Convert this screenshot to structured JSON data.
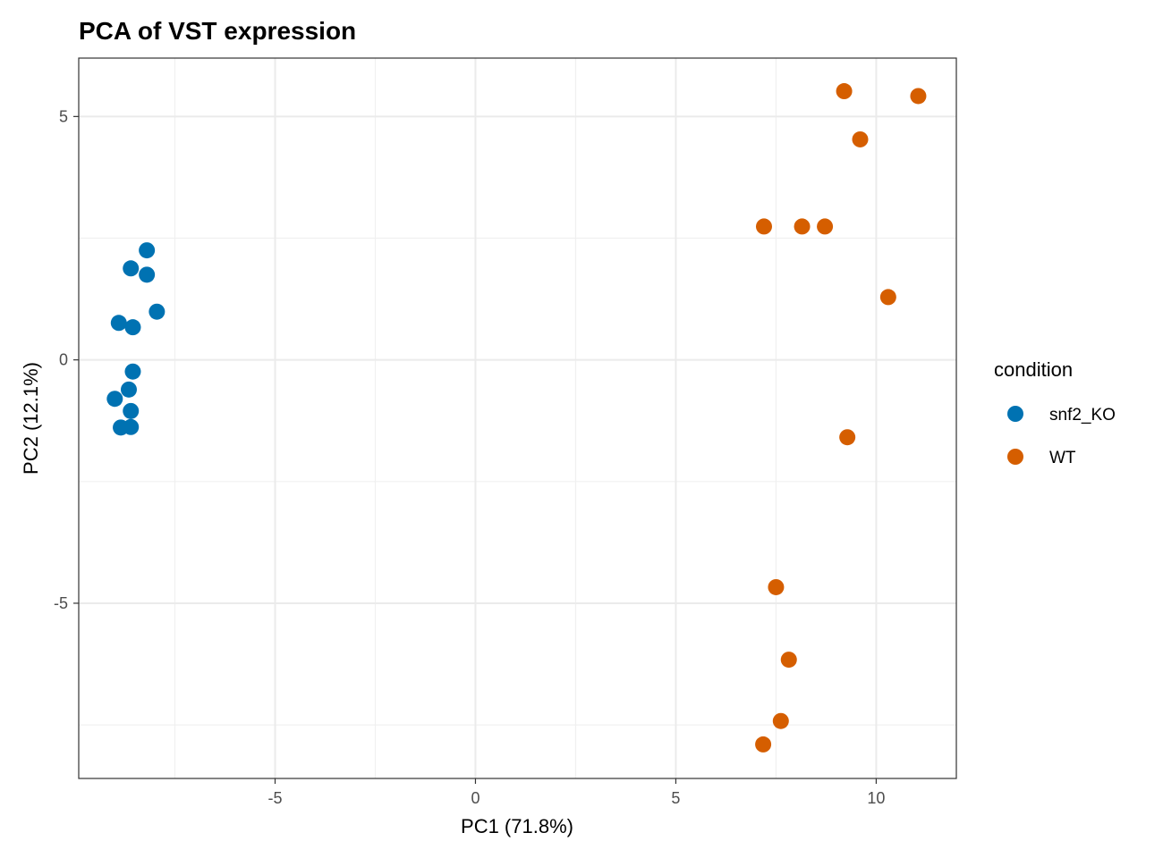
{
  "chart_data": {
    "type": "scatter",
    "title": "PCA of VST expression",
    "xlabel": "PC1 (71.8%)",
    "ylabel": "PC2 (12.1%)",
    "xlim": [
      -9.9,
      12.0
    ],
    "ylim": [
      -8.6,
      6.2
    ],
    "xticks": [
      -5,
      0,
      5,
      10
    ],
    "yticks": [
      -5,
      0,
      5
    ],
    "xtick_labels": [
      "-5",
      "0",
      "5",
      "10"
    ],
    "ytick_labels": [
      "-5",
      "0",
      "5"
    ],
    "grid": true,
    "legend": {
      "title": "condition",
      "placement": "right"
    },
    "series": [
      {
        "name": "snf2_KO",
        "color": "#0072B2",
        "points": [
          {
            "x": -8.2,
            "y": 2.25
          },
          {
            "x": -8.6,
            "y": 1.88
          },
          {
            "x": -8.2,
            "y": 1.75
          },
          {
            "x": -7.95,
            "y": 0.99
          },
          {
            "x": -8.9,
            "y": 0.76
          },
          {
            "x": -8.55,
            "y": 0.67
          },
          {
            "x": -8.55,
            "y": -0.24
          },
          {
            "x": -8.65,
            "y": -0.61
          },
          {
            "x": -9.0,
            "y": -0.8
          },
          {
            "x": -8.6,
            "y": -1.05
          },
          {
            "x": -8.85,
            "y": -1.39
          },
          {
            "x": -8.6,
            "y": -1.38
          }
        ]
      },
      {
        "name": "WT",
        "color": "#D55E00",
        "points": [
          {
            "x": 9.2,
            "y": 5.52
          },
          {
            "x": 11.05,
            "y": 5.42
          },
          {
            "x": 9.6,
            "y": 4.53
          },
          {
            "x": 7.2,
            "y": 2.74
          },
          {
            "x": 8.15,
            "y": 2.74
          },
          {
            "x": 8.72,
            "y": 2.74
          },
          {
            "x": 10.3,
            "y": 1.29
          },
          {
            "x": 9.28,
            "y": -1.59
          },
          {
            "x": 7.5,
            "y": -4.67
          },
          {
            "x": 7.82,
            "y": -6.16
          },
          {
            "x": 7.62,
            "y": -7.42
          },
          {
            "x": 7.18,
            "y": -7.9
          }
        ]
      }
    ]
  }
}
